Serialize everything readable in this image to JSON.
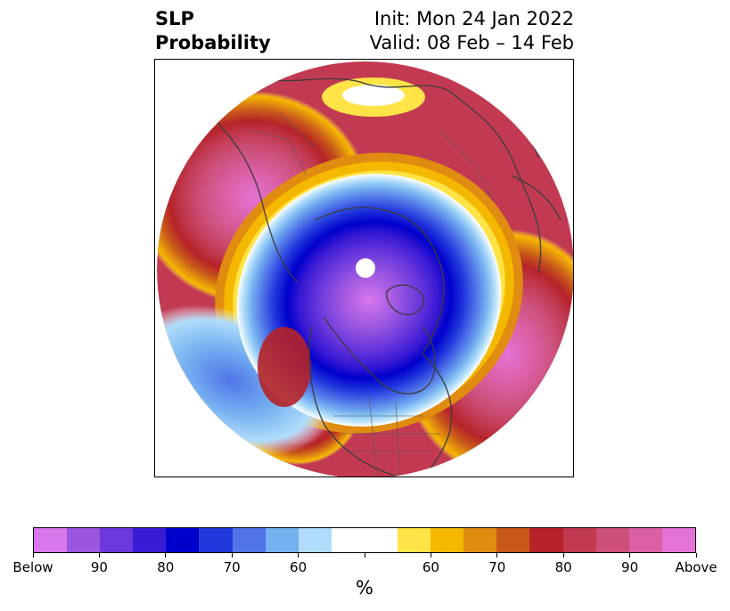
{
  "title": {
    "left_line1": "SLP",
    "left_line2": "Probability",
    "right_line1": "Init: Mon 24 Jan 2022",
    "right_line2": "Valid: 08 Feb – 14 Feb"
  },
  "colorbar": {
    "units": "%",
    "colors": [
      "#d977ec",
      "#9b56e0",
      "#6b38dc",
      "#3a1ad4",
      "#0000cc",
      "#2237dc",
      "#4f74e8",
      "#75b0f0",
      "#aedcfa",
      "#ffffff",
      "#ffffff",
      "#ffe347",
      "#f5b800",
      "#e08c10",
      "#c8581a",
      "#b52328",
      "#c23a52",
      "#cc507a",
      "#db5fa4",
      "#e473d6"
    ],
    "ticks": [
      {
        "label": "Below",
        "index": 0
      },
      {
        "label": "90",
        "index": 2
      },
      {
        "label": "80",
        "index": 4
      },
      {
        "label": "70",
        "index": 6
      },
      {
        "label": "60",
        "index": 8
      },
      {
        "label": "",
        "index": 10
      },
      {
        "label": "60",
        "index": 12
      },
      {
        "label": "70",
        "index": 14
      },
      {
        "label": "80",
        "index": 16
      },
      {
        "label": "90",
        "index": 18
      },
      {
        "label": "Above",
        "index": 20
      }
    ]
  },
  "map": {
    "projection": "north-polar-stereographic",
    "below_colors": [
      "#aedcfa",
      "#75b0f0",
      "#4f74e8",
      "#2237dc",
      "#0000cc",
      "#3a1ad4",
      "#6b38dc",
      "#9b56e0",
      "#d977ec"
    ],
    "above_colors": [
      "#ffe347",
      "#f5b800",
      "#e08c10",
      "#c8581a",
      "#b52328",
      "#c23a52",
      "#cc507a",
      "#db5fa4",
      "#e473d6"
    ],
    "coastline_color": "#3c3c3c"
  }
}
